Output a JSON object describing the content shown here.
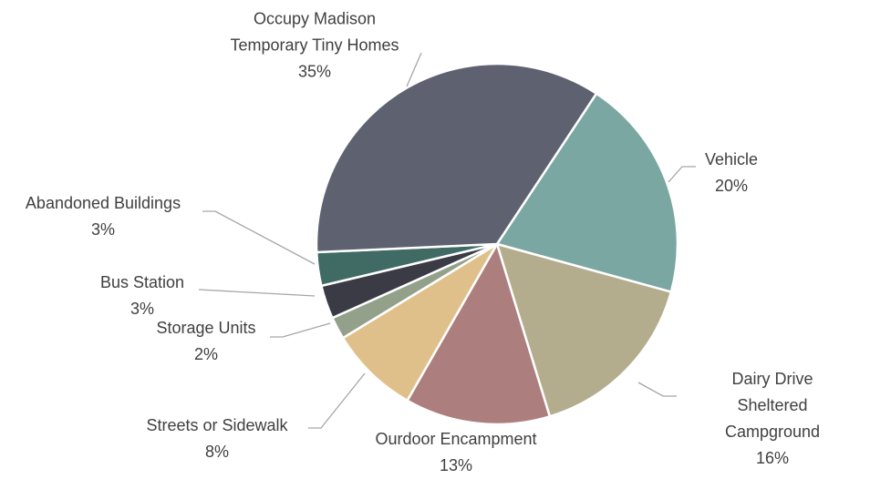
{
  "chart_data": {
    "type": "pie",
    "categories": [
      "Vehicle",
      "Dairy Drive Sheltered\nCampground",
      "Ourdoor Encampment",
      "Streets or Sidewalk",
      "Storage Units",
      "Bus Station",
      "Abandoned Buildings",
      "Occupy Madison\nTemporary Tiny Homes"
    ],
    "values": [
      20,
      16,
      13,
      8,
      2,
      3,
      3,
      35
    ],
    "value_labels": [
      "20%",
      "16%",
      "13%",
      "8%",
      "2%",
      "3%",
      "3%",
      "35%"
    ],
    "colors": [
      "#7ba7a3",
      "#b3ad8e",
      "#ad7e7e",
      "#e0c08a",
      "#93a08a",
      "#3b3b45",
      "#3f6b64",
      "#5e6170"
    ]
  }
}
